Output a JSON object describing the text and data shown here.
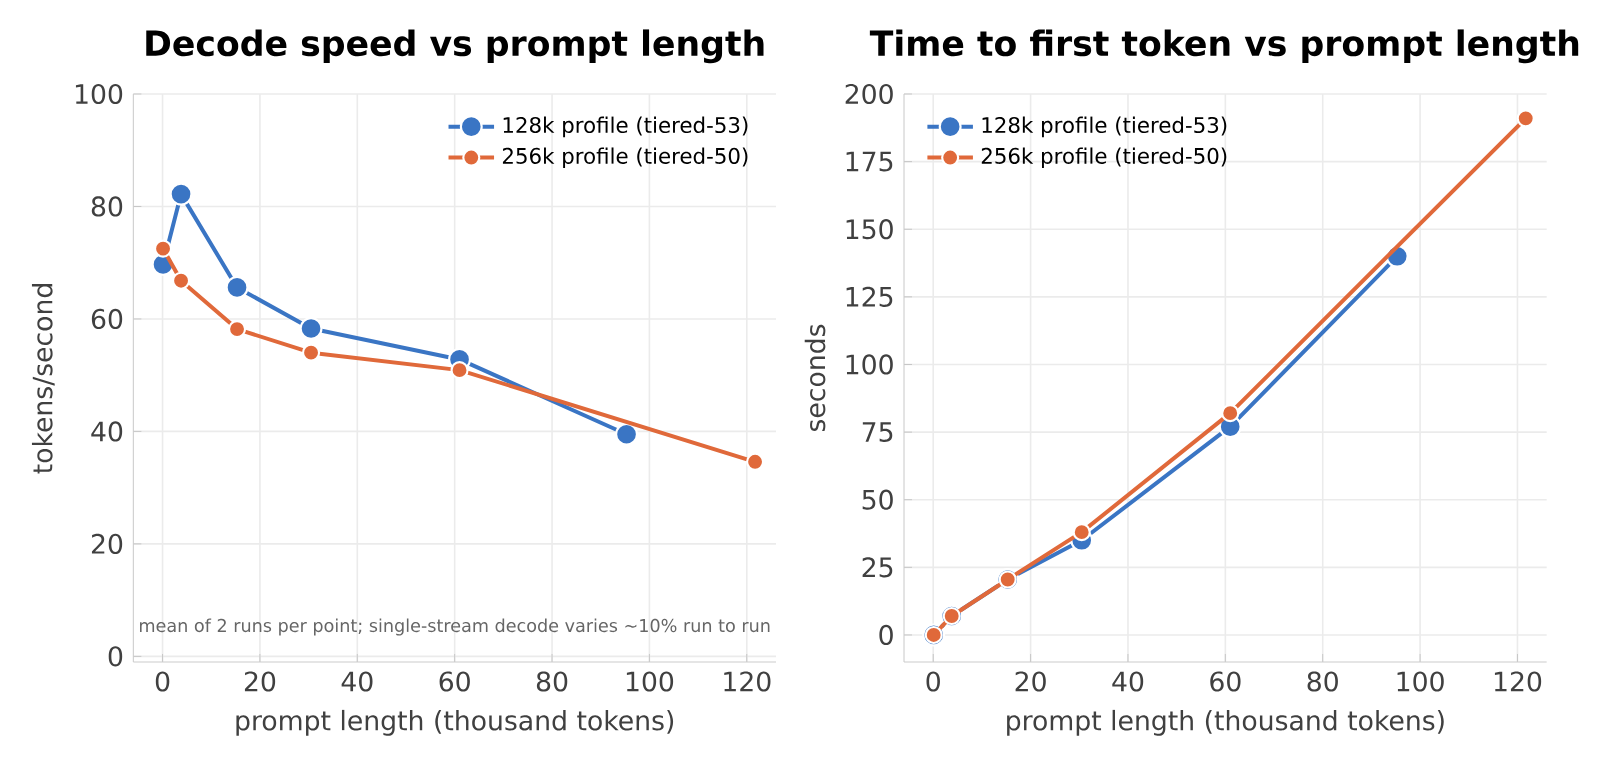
{
  "chart_data": [
    {
      "type": "line",
      "title": "Decode speed vs prompt length",
      "xlabel": "prompt length (thousand tokens)",
      "ylabel": "tokens/second",
      "xlim": [
        -6,
        126
      ],
      "ylim": [
        -1,
        100
      ],
      "xticks": [
        0,
        20,
        40,
        60,
        80,
        100,
        120
      ],
      "yticks": [
        0,
        20,
        40,
        60,
        80,
        100
      ],
      "grid": true,
      "legend": "top right",
      "marker": "circle",
      "line_style": "solid",
      "annotations": [
        "mean of 2 runs per point; single-stream decode varies ~10% run to run"
      ],
      "series": [
        {
          "name": "128k profile (tiered-53)",
          "color": "#3a75c4",
          "x": [
            0.1,
            3.8,
            15.3,
            30.5,
            61,
            95.3
          ],
          "values": [
            69.7,
            82.2,
            65.6,
            58.3,
            52.8,
            39.5
          ]
        },
        {
          "name": "256k profile (tiered-50)",
          "color": "#e0693a",
          "x": [
            0.1,
            3.8,
            15.3,
            30.5,
            61,
            121.7
          ],
          "values": [
            72.5,
            66.8,
            58.2,
            54.0,
            50.9,
            34.6
          ]
        }
      ]
    },
    {
      "type": "line",
      "title": "Time to first token vs prompt length",
      "xlabel": "prompt length (thousand tokens)",
      "ylabel": "seconds",
      "xlim": [
        -6,
        126
      ],
      "ylim": [
        -10,
        200
      ],
      "xticks": [
        0,
        20,
        40,
        60,
        80,
        100,
        120
      ],
      "yticks": [
        0,
        25,
        50,
        75,
        100,
        125,
        150,
        175,
        200
      ],
      "grid": true,
      "legend": "top left",
      "marker": "circle",
      "line_style": "solid",
      "series": [
        {
          "name": "128k profile (tiered-53)",
          "color": "#3a75c4",
          "x": [
            0.1,
            3.8,
            15.3,
            30.5,
            61,
            95.3
          ],
          "values": [
            0,
            7,
            20.5,
            35,
            77,
            140
          ]
        },
        {
          "name": "256k profile (tiered-50)",
          "color": "#e0693a",
          "x": [
            0.1,
            3.8,
            15.3,
            30.5,
            61,
            121.7
          ],
          "values": [
            0,
            7,
            20.5,
            38,
            82,
            191
          ]
        }
      ]
    }
  ]
}
